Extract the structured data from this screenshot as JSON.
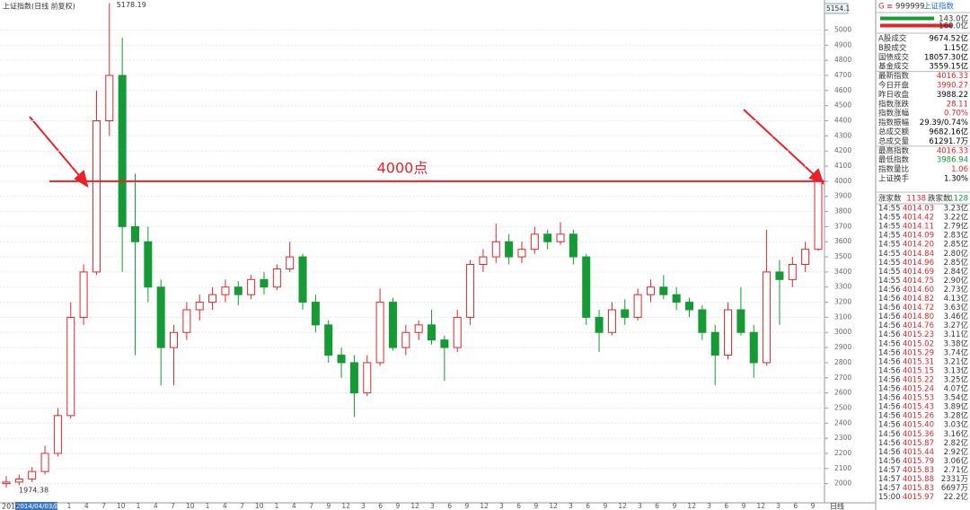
{
  "chart_data": {
    "type": "candlestick",
    "title": "上证指数(日线 前复权)",
    "top_label": "5154.1",
    "up_color": "#e0252b",
    "down_color": "#159a35",
    "ylim": [
      1873,
      5199
    ],
    "yticks": [
      2000,
      2100,
      2200,
      2300,
      2400,
      2500,
      2600,
      2700,
      2800,
      2900,
      3000,
      3100,
      3200,
      3300,
      3400,
      3500,
      3600,
      3700,
      3800,
      3900,
      4000,
      4100,
      4200,
      4300,
      4400,
      4500,
      4600,
      4700,
      4800,
      4900,
      5000
    ],
    "grid": true,
    "ref_line": {
      "value": 4000,
      "label": "4000点",
      "color": "#e8222a"
    },
    "x_start": "2014",
    "x_cursor": "2014/04/03/四",
    "x_period": "日线",
    "x_labels": [
      "1",
      "4",
      "7",
      "10",
      "1",
      "4",
      "7",
      "10",
      "1",
      "4",
      "7",
      "10",
      "1",
      "4",
      "7",
      "9",
      "12",
      "3",
      "6",
      "9",
      "12",
      "3",
      "6",
      "9",
      "12",
      "3",
      "6",
      "9",
      "12",
      "3",
      "6",
      "9",
      "12",
      "3",
      "6",
      "9",
      "12",
      "3",
      "6",
      "9",
      "12",
      "3",
      "6",
      "9"
    ],
    "open": [
      2000,
      2010,
      2030,
      2080,
      2200,
      2450,
      3100,
      3400,
      4400,
      4700,
      3700,
      3600,
      3300,
      2900,
      3000,
      3150,
      3200,
      3250,
      3300,
      3250,
      3350,
      3300,
      3420,
      3500,
      3200,
      3050,
      2850,
      2800,
      2600,
      2800,
      3200,
      2900,
      3000,
      3050,
      2950,
      2900,
      3100,
      3450,
      3500,
      3600,
      3500,
      3550,
      3650,
      3600,
      3650,
      3500,
      3100,
      3000,
      3150,
      3100,
      3250,
      3300,
      3250,
      3200,
      3150,
      3000,
      2850,
      3150,
      3000,
      2800,
      3400,
      3350,
      3450,
      3550
    ],
    "high": [
      2050,
      2060,
      2110,
      2250,
      2500,
      3200,
      3450,
      4600,
      5178.19,
      4950,
      4050,
      3700,
      3350,
      3050,
      3200,
      3250,
      3300,
      3350,
      3340,
      3380,
      3400,
      3450,
      3600,
      3520,
      3250,
      3080,
      2900,
      2850,
      2850,
      3290,
      3230,
      3050,
      3080,
      3150,
      2980,
      3150,
      3480,
      3550,
      3720,
      3650,
      3600,
      3700,
      3680,
      3730,
      3680,
      3520,
      3150,
      3200,
      3220,
      3290,
      3350,
      3380,
      3300,
      3230,
      3180,
      3050,
      3200,
      3300,
      3050,
      3680,
      3480,
      3500,
      3600,
      4016.33
    ],
    "low": [
      1974.38,
      1990,
      2010,
      2060,
      2180,
      2430,
      3050,
      3380,
      4300,
      3400,
      2850,
      3200,
      2650,
      2650,
      2950,
      3080,
      3150,
      3200,
      3180,
      3220,
      3250,
      3280,
      3400,
      3150,
      3000,
      2800,
      2700,
      2440,
      2580,
      2780,
      2880,
      2850,
      2950,
      2920,
      2680,
      2870,
      3050,
      3400,
      3460,
      3450,
      3460,
      3520,
      3550,
      3580,
      3450,
      3050,
      2870,
      2980,
      3050,
      3080,
      3200,
      3220,
      3150,
      3100,
      2950,
      2650,
      2820,
      2980,
      2700,
      2780,
      3050,
      3300,
      3400,
      3540
    ],
    "close": [
      2010,
      2030,
      2080,
      2200,
      2450,
      3100,
      3400,
      4400,
      4700,
      3700,
      3600,
      3300,
      2900,
      3000,
      3150,
      3200,
      3250,
      3300,
      3250,
      3350,
      3300,
      3420,
      3500,
      3200,
      3050,
      2850,
      2800,
      2600,
      2800,
      3200,
      2900,
      3000,
      3050,
      2950,
      2900,
      3100,
      3450,
      3500,
      3600,
      3500,
      3550,
      3650,
      3600,
      3650,
      3500,
      3100,
      3000,
      3150,
      3100,
      3250,
      3300,
      3250,
      3200,
      3150,
      3000,
      2850,
      3150,
      3000,
      2800,
      3400,
      3350,
      3450,
      3550,
      4000
    ]
  },
  "panel": {
    "header": {
      "mark": "G",
      "menu": "≡",
      "code": "999999",
      "name": "上证指数"
    },
    "bars": [
      {
        "label": "143.0亿",
        "color": "#159a35"
      },
      {
        "label": "160.0亿",
        "color": "#e0252b"
      }
    ],
    "rows": [
      {
        "label": "A股成交",
        "value": "9674.52亿",
        "color": "#000"
      },
      {
        "label": "B股成交",
        "value": "1.15亿",
        "color": "#000"
      },
      {
        "label": "国债成交",
        "value": "18057.30亿",
        "color": "#000"
      },
      {
        "label": "基金成交",
        "value": "3559.15亿",
        "color": "#000"
      },
      {
        "label": "最新指数",
        "value": "4016.33",
        "color": "#e0252b"
      },
      {
        "label": "今日开盘",
        "value": "3990.27",
        "color": "#e0252b"
      },
      {
        "label": "昨日收盘",
        "value": "3988.22",
        "color": "#000"
      },
      {
        "label": "指数涨跌",
        "value": "28.11",
        "color": "#e0252b"
      },
      {
        "label": "指数涨幅",
        "value": "0.70%",
        "color": "#e0252b"
      },
      {
        "label": "指数振幅",
        "value": "29.39/0.74%",
        "color": "#000"
      },
      {
        "label": "总成交额",
        "value": "9682.16亿",
        "color": "#000"
      },
      {
        "label": "总成交量",
        "value": "61291.7万",
        "color": "#000"
      },
      {
        "label": "最高指数",
        "value": "4016.33",
        "color": "#e0252b"
      },
      {
        "label": "最低指数",
        "value": "3986.94",
        "color": "#159a35"
      },
      {
        "label": "指数量比",
        "value": "1.06",
        "color": "#e0252b"
      },
      {
        "label": "上证换手",
        "value": "1.30%",
        "color": "#000"
      }
    ],
    "breadth": {
      "up_label": "涨家数",
      "up": "1138",
      "down_label": "跌家数",
      "down": "1128"
    },
    "ticks": [
      [
        "14:55",
        "4014.03",
        "3.23亿"
      ],
      [
        "14:55",
        "4014.42",
        "3.22亿"
      ],
      [
        "14:55",
        "4014.11",
        "2.79亿"
      ],
      [
        "14:55",
        "4014.09",
        "2.83亿"
      ],
      [
        "14:55",
        "4014.20",
        "2.85亿"
      ],
      [
        "14:55",
        "4014.84",
        "2.80亿"
      ],
      [
        "14:55",
        "4014.96",
        "2.85亿"
      ],
      [
        "14:55",
        "4014.69",
        "2.84亿"
      ],
      [
        "14:55",
        "4014.75",
        "2.90亿"
      ],
      [
        "14:56",
        "4014.60",
        "2.73亿"
      ],
      [
        "14:56",
        "4014.82",
        "4.13亿"
      ],
      [
        "14:56",
        "4014.72",
        "3.63亿"
      ],
      [
        "14:56",
        "4014.80",
        "3.46亿"
      ],
      [
        "14:56",
        "4014.76",
        "3.27亿"
      ],
      [
        "14:56",
        "4015.23",
        "3.11亿"
      ],
      [
        "14:56",
        "4015.02",
        "3.38亿"
      ],
      [
        "14:56",
        "4015.29",
        "3.74亿"
      ],
      [
        "14:56",
        "4015.31",
        "3.21亿"
      ],
      [
        "14:56",
        "4015.15",
        "3.13亿"
      ],
      [
        "14:56",
        "4015.22",
        "3.25亿"
      ],
      [
        "14:56",
        "4015.24",
        "4.07亿"
      ],
      [
        "14:56",
        "4015.53",
        "3.54亿"
      ],
      [
        "14:56",
        "4015.43",
        "3.89亿"
      ],
      [
        "14:56",
        "4015.26",
        "3.28亿"
      ],
      [
        "14:56",
        "4015.40",
        "3.03亿"
      ],
      [
        "14:56",
        "4015.36",
        "3.16亿"
      ],
      [
        "14:56",
        "4015.87",
        "2.82亿"
      ],
      [
        "14:56",
        "4015.44",
        "2.92亿"
      ],
      [
        "14:56",
        "4015.79",
        "3.06亿"
      ],
      [
        "14:57",
        "4015.83",
        "2.71亿"
      ],
      [
        "14:57",
        "4015.88",
        "2331万"
      ],
      [
        "14:57",
        "4015.83",
        "6697万"
      ],
      [
        "15:00",
        "4015.97",
        "22.2亿"
      ]
    ]
  }
}
